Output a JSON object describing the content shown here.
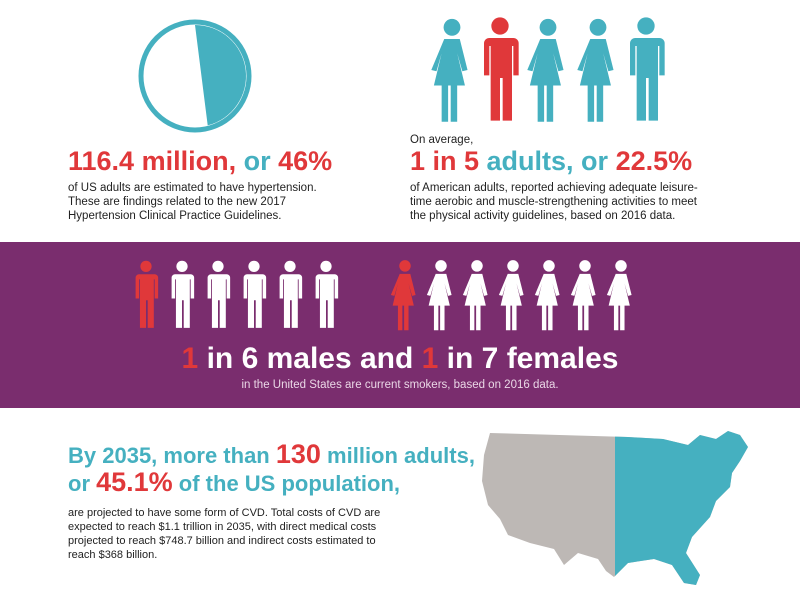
{
  "colors": {
    "red": "#e0383a",
    "teal": "#45b0c0",
    "purple": "#7a2d6e",
    "gray": "#bdb8b5"
  },
  "hypertension": {
    "pie_fraction": 0.46,
    "headline_a": "116.4 million,",
    "headline_b": " or ",
    "headline_c": "46%",
    "line1": "of US adults are estimated to have hypertension.",
    "line2": "These are findings related to the new 2017",
    "line3": "Hypertension Clinical Practice Guidelines."
  },
  "activity": {
    "intro": "On average,",
    "headline_a": "1 in 5",
    "headline_b": " adults, or ",
    "headline_c": "22.5%",
    "line1": "of American adults, reported achieving adequate leisure-",
    "line2": "time aerobic and muscle-strengthening activities to meet",
    "line3": "the physical activity guidelines, based on 2016 data.",
    "figures": [
      "female",
      "male",
      "female",
      "female",
      "male"
    ],
    "highlight_index": 1
  },
  "smokers": {
    "males_total": 6,
    "females_total": 7,
    "headline_a": "1",
    "headline_b": " in 6 males and ",
    "headline_c": "1",
    "headline_d": " in 7 females",
    "subline": "in the United States are current smokers, based on 2016 data."
  },
  "cvd": {
    "line_a1": "By 2035, more than ",
    "line_a2": "130",
    "line_a3": " million adults,",
    "line_b1": "or ",
    "line_b2": "45.1%",
    "line_b3": " of the US population,",
    "body1": "are projected to have some form of CVD. Total costs of CVD are",
    "body2": "expected to reach $1.1 trillion in 2035, with direct medical costs",
    "body3": "projected to reach $748.7 billion and indirect costs estimated to",
    "body4": "reach $368 billion.",
    "map_fraction": 0.451
  }
}
